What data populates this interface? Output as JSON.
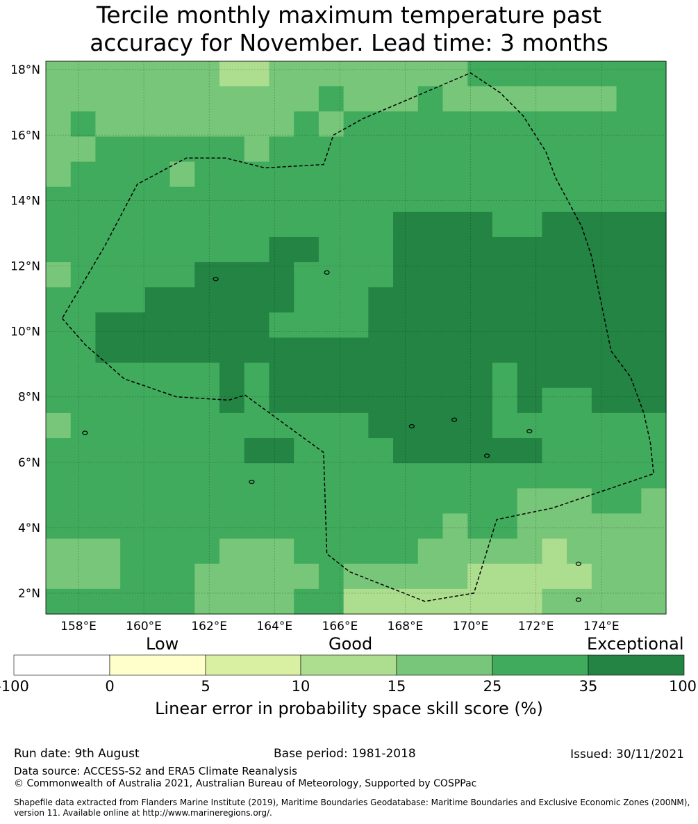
{
  "title": {
    "line1": "Tercile monthly maximum temperature past",
    "line2": "accuracy for November. Lead time: 3 months"
  },
  "map": {
    "lon_range": [
      157.0,
      176.0
    ],
    "lat_range": [
      1.35,
      18.3
    ],
    "lon_ticks": [
      "158°E",
      "160°E",
      "162°E",
      "164°E",
      "166°E",
      "168°E",
      "170°E",
      "172°E",
      "174°E"
    ],
    "lat_ticks": [
      "2°N",
      "4°N",
      "6°N",
      "8°N",
      "10°N",
      "12°N",
      "14°N",
      "16°N",
      "18°N"
    ],
    "boundary": "dashed EEZ outline",
    "colors": [
      "#ffffff",
      "#ffffcc",
      "#d9f0a3",
      "#addd8e",
      "#78c679",
      "#41ab5d",
      "#238443"
    ]
  },
  "colorbar": {
    "category_labels": [
      "Low",
      "Good",
      "Exceptional"
    ],
    "ticks": [
      "-100",
      "0",
      "5",
      "10",
      "15",
      "25",
      "35",
      "100"
    ],
    "title": "Linear error in probability space skill score (%)"
  },
  "footer": {
    "run_date": "Run date: 9th August",
    "base_period": "Base period: 1981-2018",
    "issued": "Issued: 30/11/2021",
    "data_source": "Data source: ACCESS-S2 and ERA5 Climate Reanalysis",
    "copyright": "© Commonwealth of Australia 2021, Australian Bureau of Meteorology, Supported by COSPPac",
    "shapefile": "Shapefile data extracted from Flanders Marine Institute (2019), Maritime Boundaries Geodatabase: Maritime Boundaries and Exclusive Economic Zones (200NM), version 11. Available online at http://www.marineregions.org/."
  }
}
